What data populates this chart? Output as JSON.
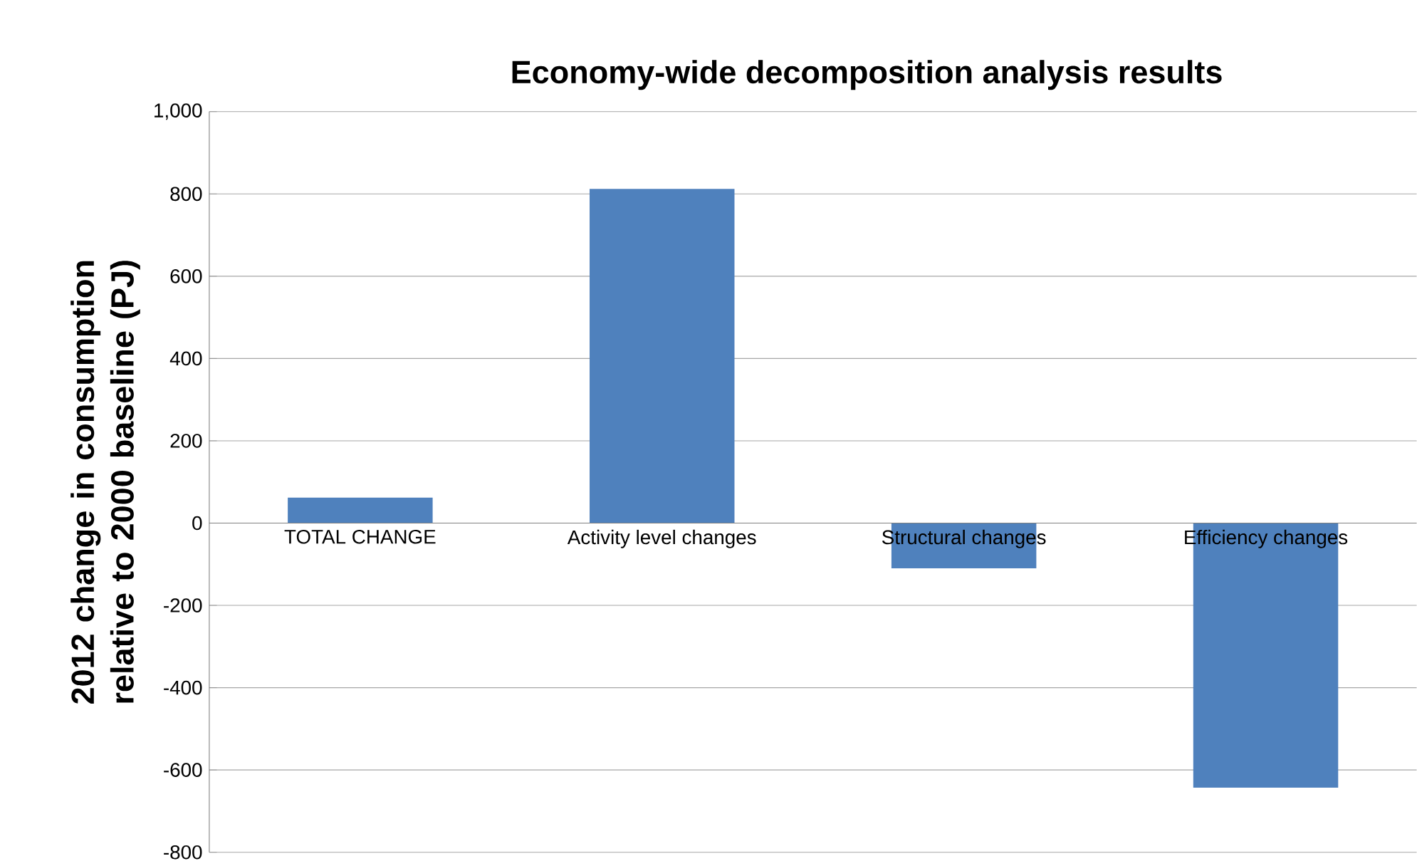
{
  "chart_data": {
    "type": "bar",
    "title": "Economy-wide decomposition analysis results",
    "ylabel": "2012 change in consumption  relative to 2000 baseline (PJ)",
    "categories": [
      "TOTAL CHANGE",
      "Activity level changes",
      "Structural changes",
      "Efficiency changes"
    ],
    "values": [
      62,
      812,
      -110,
      -643
    ],
    "color": "#4f81bd",
    "ylim": [
      -800,
      1000
    ],
    "yticks": [
      -800,
      -600,
      -400,
      -200,
      0,
      200,
      400,
      600,
      800,
      {
        "value": 1000,
        "label": "1,000"
      }
    ],
    "grid": "y"
  }
}
